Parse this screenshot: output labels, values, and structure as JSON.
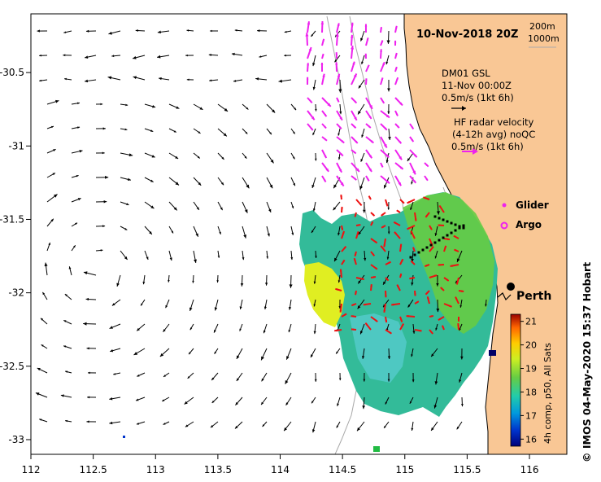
{
  "map": {
    "title": "10-Nov-2018 20Z",
    "depth_contours": [
      "200m",
      "1000m"
    ],
    "model_label": [
      "DM01 GSL",
      "11-Nov 00:00Z",
      "0.5m/s (1kt 6h)"
    ],
    "radar_label": [
      "HF radar velocity",
      "(4-12h avg) noQC",
      "0.5m/s (1kt 6h)"
    ],
    "legend": {
      "glider": "Glider",
      "argo": "Argo"
    },
    "city": "Perth",
    "x_axis": {
      "min": 112,
      "max": 116.3,
      "ticks": [
        "112",
        "112.5",
        "113",
        "113.5",
        "114",
        "114.5",
        "115",
        "115.5",
        "116"
      ]
    },
    "y_axis": {
      "min": -33.1,
      "max": -30.1,
      "ticks": [
        "-30.5",
        "-31",
        "-31.5",
        "-32",
        "-32.5",
        "-33"
      ]
    },
    "colorbar": {
      "label": "4h comp, p50, All Sats",
      "ticks": [
        "16",
        "17",
        "18",
        "19",
        "20",
        "21"
      ],
      "range": [
        15.7,
        21.3
      ]
    },
    "credit": "©  IMOS 04-May-2020 15:37 Hobart",
    "colors": {
      "land": "#f9c795",
      "sea": "#ffffff",
      "model_arrow": "#000000",
      "radar_arrow": "#ee22ee",
      "glider": "#ff1a1a"
    }
  }
}
